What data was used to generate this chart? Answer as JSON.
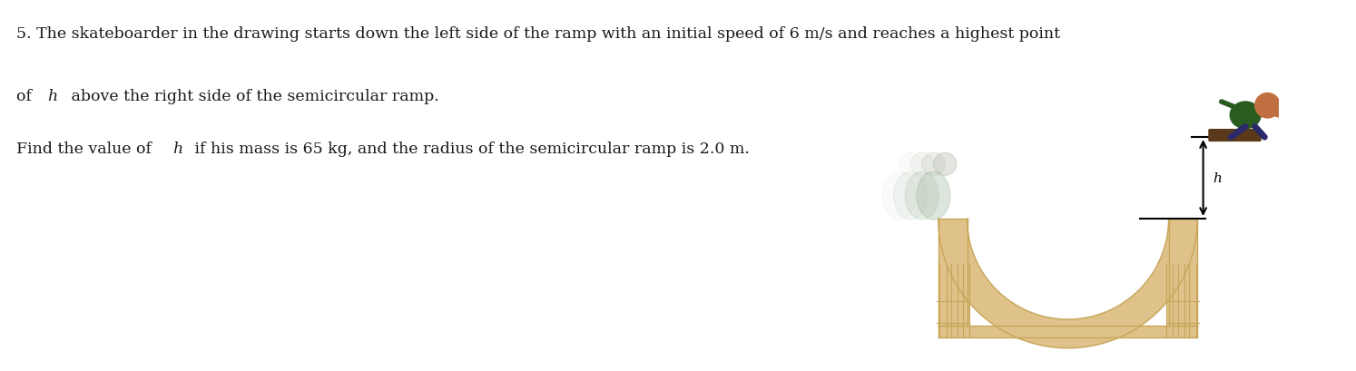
{
  "background_color": "#ffffff",
  "text_color": "#1a1a1a",
  "fontsize": 12.5,
  "ramp_color": "#dfc28a",
  "ramp_inner_color": "#efe0bb",
  "ramp_edge_color": "#c8a55a",
  "figure_width": 14.94,
  "figure_height": 4.1,
  "line1": "5. The skateboarder in the drawing starts down the left side of the ramp with an initial speed of 6 m/s and reaches a highest point",
  "line2_pre": "of  ",
  "line2_italic": "h",
  "line2_post": " above the right side of the semicircular ramp.",
  "line3_pre": "Find the value of ",
  "line3_italic": "h",
  "line3_post": " if his mass is 65 kg, and the radius of the semicircular ramp is 2.0 m."
}
